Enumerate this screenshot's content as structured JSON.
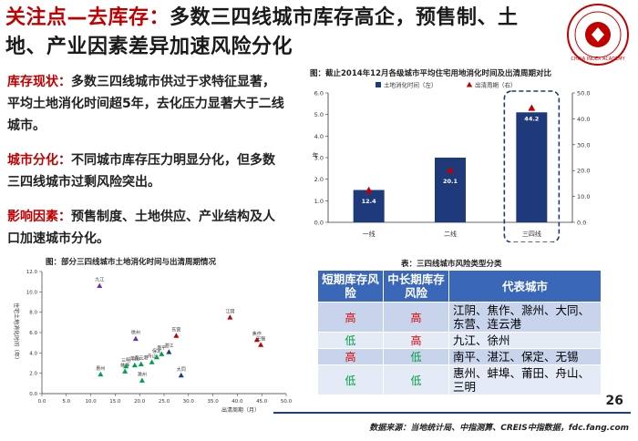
{
  "slide": {
    "title_accent": "关注点—去库存：",
    "title_rest": "多数三四线城市库存高企，预售制、土地、产业因素差异加速风险分化",
    "logo_text": "CHINA INDEX ACADEMY",
    "page_number": "26",
    "source": "数据来源：当地统计局、中指测算、CREIS中指数据，fdc.fang.com"
  },
  "points": [
    {
      "keyword": "库存现状：",
      "text": "多数三四线城市供过于求特征显著，平均土地消化时间超5年，去化压力显著大于二线城市。"
    },
    {
      "keyword": "城市分化：",
      "text": "不同城市库存压力明显分化，但多数三四线城市过剩风险突出。"
    },
    {
      "keyword": "影响因素：",
      "text": "预售制度、土地供应、产业结构及人口加速城市分化。"
    }
  ],
  "chart1_title": "图：截止2014年12月各级城市平均住宅用地消化时间及出清周期对比",
  "chart2_title": "图：部分三四线城市土地消化时间与出清周期情况",
  "table": {
    "title": "表：三四线城市风险类型分类",
    "headers": [
      "短期库存风险",
      "中长期库存风险",
      "代表城市"
    ],
    "rows": [
      {
        "short": "高",
        "long": "高",
        "cities": "江阴、焦作、滁州、大同、东营、连云港"
      },
      {
        "short": "低",
        "long": "高",
        "cities": "九江、徐州"
      },
      {
        "short": "高",
        "long": "低",
        "cities": "南平、湛江、保定、无锡"
      },
      {
        "short": "低",
        "long": "低",
        "cities": "惠州、蚌埠、莆田、舟山、三明"
      }
    ],
    "colors": {
      "high": "#e00000",
      "low": "#00a040"
    }
  },
  "chart_data": [
    {
      "type": "bar",
      "categories": [
        "一线",
        "二线",
        "三四线"
      ],
      "series": [
        {
          "name": "土地消化时间（左）",
          "values": [
            1.5,
            3.0,
            5.1
          ],
          "color": "#1f3a7a"
        },
        {
          "name": "出清周期（右）",
          "values": [
            12.4,
            20.1,
            44.2
          ],
          "color": "#c00000"
        }
      ],
      "data_labels": [
        "12.4",
        "20.1",
        "44.2"
      ],
      "ylabel_left": "年",
      "ylim_left": [
        0,
        6
      ],
      "yticks_left": [
        "0.0",
        "1.0",
        "2.0",
        "3.0",
        "4.0",
        "5.0",
        "6.0"
      ],
      "ylim_right": [
        0,
        50
      ],
      "yticks_right": [
        "0.0",
        "10.0",
        "20.0",
        "30.0",
        "40.0",
        "50.0"
      ],
      "legend": "top"
    },
    {
      "type": "scatter",
      "xlabel": "出清周期（月）",
      "ylabel": "住宅土地消化时间（年）",
      "xlim": [
        0,
        50
      ],
      "ylim": [
        0,
        12
      ],
      "xticks": [
        "0.0",
        "5.0",
        "10.0",
        "15.0",
        "20.0",
        "25.0",
        "30.0",
        "35.0",
        "40.0",
        "45.0",
        "50.0"
      ],
      "yticks": [
        "0.0",
        "2.0",
        "4.0",
        "6.0",
        "8.0",
        "10.0",
        "12.0"
      ],
      "points": [
        {
          "name": "九江",
          "x": 11.8,
          "y": 10.6,
          "color": "#7030a0"
        },
        {
          "name": "徐州",
          "x": 19.2,
          "y": 5.4,
          "color": "#7030a0"
        },
        {
          "name": "江阴",
          "x": 38.5,
          "y": 7.5,
          "color": "#c00000"
        },
        {
          "name": "东营",
          "x": 27.5,
          "y": 5.7,
          "color": "#c00000"
        },
        {
          "name": "焦作",
          "x": 44.0,
          "y": 5.3,
          "color": "#c00000"
        },
        {
          "name": "无锡",
          "x": 44.8,
          "y": 4.8,
          "color": "#c00000"
        },
        {
          "name": "惠州",
          "x": 12.0,
          "y": 1.9,
          "color": "#00a050"
        },
        {
          "name": "蚌埠",
          "x": 17.0,
          "y": 2.2,
          "color": "#00a050"
        },
        {
          "name": "三明",
          "x": 17.2,
          "y": 2.7,
          "color": "#00a050"
        },
        {
          "name": "莆田",
          "x": 19.0,
          "y": 2.8,
          "color": "#00a050"
        },
        {
          "name": "舟山",
          "x": 22.5,
          "y": 3.1,
          "color": "#00a050"
        },
        {
          "name": "连云港",
          "x": 20.3,
          "y": 2.9,
          "color": "#00a050"
        },
        {
          "name": "保定",
          "x": 23.5,
          "y": 3.6,
          "color": "#00a050"
        },
        {
          "name": "南平",
          "x": 24.5,
          "y": 3.9,
          "color": "#00a050"
        },
        {
          "name": "湛江",
          "x": 26.0,
          "y": 4.1,
          "color": "#1f3a7a"
        },
        {
          "name": "大同",
          "x": 28.5,
          "y": 1.8,
          "color": "#1f3a7a"
        },
        {
          "name": "滁州",
          "x": 20.5,
          "y": 1.3,
          "color": "#00a050"
        }
      ]
    }
  ]
}
